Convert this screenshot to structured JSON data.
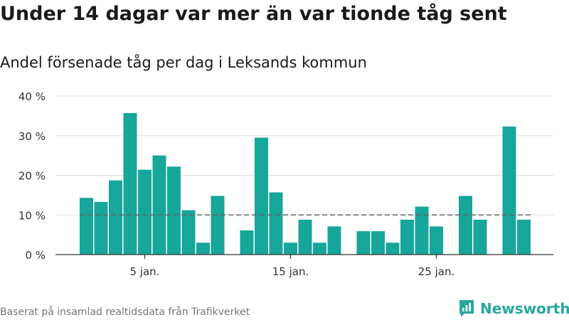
{
  "title": "Under 14 dagar var mer än var tionde tåg sent",
  "subtitle": "Andel försenade tåg per dag i Leksands kommun",
  "footer": "Baserat på insamlad realtidsdata från Trafikverket",
  "brand": {
    "name": "Newsworthy",
    "icon": "newsworthy-logo-icon",
    "color": "#2aa69d"
  },
  "colors": {
    "bar": "#16a69a",
    "reference_line": "#666666",
    "grid": "#dddddd",
    "axis": "#333333"
  },
  "chart_data": {
    "type": "bar",
    "title": "Under 14 dagar var mer än var tionde tåg sent",
    "subtitle": "Andel försenade tåg per dag i Leksands kommun",
    "x": [
      1,
      2,
      3,
      4,
      5,
      6,
      7,
      8,
      9,
      10,
      11,
      12,
      13,
      14,
      15,
      16,
      17,
      18,
      19,
      20,
      21,
      22,
      23,
      24,
      25,
      26,
      27,
      28,
      29,
      30,
      31
    ],
    "values": [
      14.3,
      13.3,
      18.7,
      35.7,
      21.4,
      25.0,
      22.2,
      11.2,
      3.0,
      14.8,
      null,
      6.1,
      29.5,
      15.7,
      3.0,
      8.8,
      3.0,
      7.1,
      null,
      5.9,
      5.9,
      3.0,
      8.8,
      12.1,
      7.1,
      null,
      14.8,
      8.8,
      null,
      32.3,
      8.8
    ],
    "xlim": [
      1,
      31
    ],
    "ylim": [
      0,
      40
    ],
    "yticks": [
      0,
      10,
      20,
      30,
      40
    ],
    "ytick_labels": [
      "0 %",
      "10 %",
      "20 %",
      "30 %",
      "40 %"
    ],
    "xticks": [
      5,
      15,
      25
    ],
    "xtick_labels": [
      "5 jan.",
      "15 jan.",
      "25 jan."
    ],
    "reference_line": {
      "value": 10,
      "style": "dashed"
    },
    "grid": true,
    "xlabel": "",
    "ylabel": ""
  }
}
